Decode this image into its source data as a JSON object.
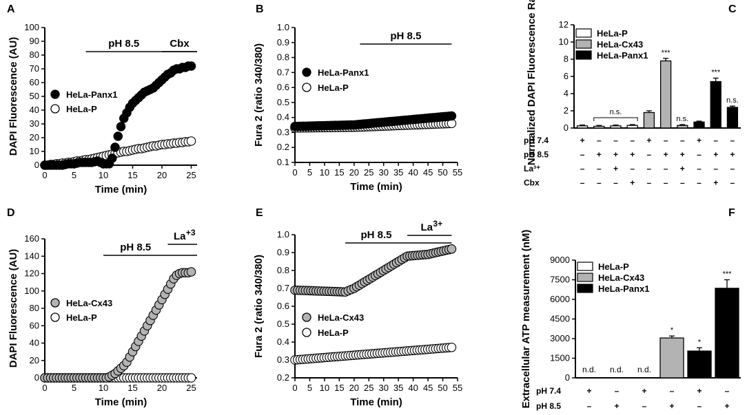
{
  "chart_data": [
    {
      "panel": "A",
      "type": "scatter",
      "ylabel": "DAPI Fluorescence (AU)",
      "xlabel": "Time (min)",
      "xlim": [
        0,
        26
      ],
      "ylim": [
        0,
        100
      ],
      "xticks": [
        0,
        5,
        10,
        15,
        20,
        25
      ],
      "yticks": [
        0,
        10,
        20,
        30,
        40,
        50,
        60,
        70,
        80,
        90,
        100
      ],
      "annotations": [
        {
          "text": "pH 8.5",
          "x_start": 7,
          "x_end": 26
        },
        {
          "text": "Cbx",
          "x_start": 20,
          "x_end": 26
        }
      ],
      "series": [
        {
          "name": "HeLa-Panx1",
          "fill": "#000000",
          "x": [
            0,
            0.5,
            1,
            1.5,
            2,
            2.5,
            3,
            3.5,
            4,
            4.5,
            5,
            5.5,
            6,
            6.5,
            7,
            7.5,
            8,
            8.5,
            9,
            9.5,
            10,
            10.5,
            11,
            11.5,
            12,
            12.5,
            13,
            13.5,
            14,
            14.5,
            15,
            15.5,
            16,
            16.5,
            17,
            17.5,
            18,
            18.5,
            19,
            19.5,
            20,
            20.5,
            21,
            21.5,
            22,
            22.5,
            23,
            23.5,
            24,
            24.5,
            25
          ],
          "y": [
            0,
            0,
            0,
            0,
            0,
            0,
            0,
            0.5,
            1,
            1,
            1,
            1.5,
            2,
            2,
            2,
            2,
            2,
            2.5,
            3,
            2,
            1,
            1,
            1,
            5,
            13,
            21,
            28,
            34,
            38,
            42,
            45,
            47,
            49,
            51,
            53,
            54,
            55,
            56,
            58,
            60,
            62,
            64,
            66,
            67,
            69,
            70,
            70,
            71,
            71,
            72,
            72
          ]
        },
        {
          "name": "HeLa-P",
          "fill": "#ffffff",
          "x": [
            0,
            0.5,
            1,
            1.5,
            2,
            2.5,
            3,
            3.5,
            4,
            4.5,
            5,
            5.5,
            6,
            6.5,
            7,
            7.5,
            8,
            8.5,
            9,
            9.5,
            10,
            10.5,
            11,
            11.5,
            12,
            12.5,
            13,
            13.5,
            14,
            14.5,
            15,
            15.5,
            16,
            16.5,
            17,
            17.5,
            18,
            18.5,
            19,
            19.5,
            20,
            20.5,
            21,
            21.5,
            22,
            22.5,
            23,
            23.5,
            24,
            24.5,
            25
          ],
          "y": [
            0,
            0,
            0.5,
            0.5,
            1,
            1,
            1.5,
            1.5,
            2,
            2,
            2.5,
            3,
            3,
            3.5,
            4,
            4,
            4.5,
            5,
            5.5,
            6,
            6.5,
            7,
            7.5,
            8,
            8.5,
            9,
            9.5,
            10,
            10,
            10.5,
            11,
            11.5,
            12,
            12,
            12.5,
            13,
            13.5,
            14,
            14,
            14.5,
            15,
            15,
            15.5,
            15.5,
            16,
            16,
            16.5,
            16.5,
            17,
            17,
            17.5
          ]
        }
      ]
    },
    {
      "panel": "B",
      "type": "scatter",
      "ylabel": "Fura 2 (ratio 340/380)",
      "xlabel": "Time (min)",
      "xlim": [
        0,
        55
      ],
      "ylim": [
        0.1,
        1.0
      ],
      "xticks": [
        0,
        5,
        10,
        15,
        20,
        25,
        30,
        35,
        40,
        45,
        50,
        55
      ],
      "yticks": [
        0.1,
        0.2,
        0.3,
        0.4,
        0.5,
        0.6,
        0.7,
        0.8,
        0.9,
        1.0
      ],
      "annotations": [
        {
          "text": "pH 8.5",
          "x_start": 22,
          "x_end": 53
        }
      ],
      "series": [
        {
          "name": "HeLa-Panx1",
          "fill": "#000000",
          "x_start": 0,
          "x_end": 53,
          "y_start": 0.34,
          "y_end": 0.41,
          "change_x": 20
        },
        {
          "name": "HeLa-P",
          "fill": "#ffffff",
          "x_start": 0,
          "x_end": 53,
          "y_start": 0.33,
          "y_end": 0.36,
          "change_x": 20
        }
      ]
    },
    {
      "panel": "C",
      "type": "bar",
      "ylabel": "Normalized DAPI Fluorescence Rate",
      "ylim": [
        0,
        12
      ],
      "yticks": [
        0,
        2,
        4,
        6,
        8,
        10,
        12
      ],
      "legend": [
        {
          "name": "HeLa-P",
          "fill": "#ffffff"
        },
        {
          "name": "HeLa-Cx43",
          "fill": "#b3b3b3"
        },
        {
          "name": "HeLa-Panx1",
          "fill": "#000000"
        }
      ],
      "values": [
        0.25,
        0.2,
        0.25,
        0.3,
        1.8,
        7.8,
        0.3,
        0.7,
        5.4,
        2.4
      ],
      "errors": [
        0.1,
        0.1,
        0.1,
        0.1,
        0.2,
        0.3,
        0.1,
        0.1,
        0.4,
        0.15
      ],
      "groups": [
        "HeLa-P",
        "HeLa-P",
        "HeLa-P",
        "HeLa-P",
        "HeLa-Cx43",
        "HeLa-Cx43",
        "HeLa-Cx43",
        "HeLa-Panx1",
        "HeLa-Panx1",
        "HeLa-Panx1"
      ],
      "significance": [
        "",
        "",
        "",
        "",
        "",
        "***",
        "n.s.",
        "",
        "***",
        "n.s."
      ],
      "bracket": {
        "from": 1,
        "to": 3,
        "label": "n.s."
      },
      "conditions": [
        {
          "label": "pH 7.4",
          "signs": [
            "+",
            "-",
            "-",
            "-",
            "+",
            "-",
            "-",
            "+",
            "-",
            "-"
          ]
        },
        {
          "label": "pH 8.5",
          "signs": [
            "-",
            "+",
            "+",
            "+",
            "-",
            "+",
            "+",
            "-",
            "+",
            "+"
          ]
        },
        {
          "label": "La³⁺",
          "signs": [
            "-",
            "-",
            "+",
            "-",
            "-",
            "-",
            "+",
            "-",
            "-",
            "-"
          ]
        },
        {
          "label": "Cbx",
          "signs": [
            "-",
            "-",
            "-",
            "+",
            "-",
            "-",
            "-",
            "-",
            "+",
            "-"
          ]
        }
      ]
    },
    {
      "panel": "D",
      "type": "scatter",
      "ylabel": "DAPI Fluorescence (AU)",
      "xlabel": "Time (min)",
      "xlim": [
        0,
        26
      ],
      "ylim": [
        0,
        160
      ],
      "xticks": [
        0,
        5,
        10,
        15,
        20,
        25
      ],
      "yticks": [
        0,
        20,
        40,
        60,
        80,
        100,
        120,
        140,
        160
      ],
      "annotations": [
        {
          "text": "pH 8.5",
          "x_start": 10,
          "x_end": 26
        },
        {
          "text": "La+3",
          "x_start": 21,
          "x_end": 26
        }
      ],
      "series": [
        {
          "name": "HeLa-Cx43",
          "fill": "#b3b3b3",
          "x": [
            0,
            0.5,
            1,
            1.5,
            2,
            2.5,
            3,
            3.5,
            4,
            4.5,
            5,
            5.5,
            6,
            6.5,
            7,
            7.5,
            8,
            8.5,
            9,
            9.5,
            10,
            10.5,
            11,
            11.5,
            12,
            12.5,
            13,
            13.5,
            14,
            14.5,
            15,
            15.5,
            16,
            16.5,
            17,
            17.5,
            18,
            18.5,
            19,
            19.5,
            20,
            20.5,
            21,
            21.5,
            22,
            22.5,
            23,
            23.5,
            24,
            24.5,
            25
          ],
          "y": [
            0,
            0,
            0,
            0,
            0,
            0,
            0,
            0,
            0,
            0,
            0,
            0,
            0,
            0,
            0,
            0,
            0,
            0,
            0,
            0,
            0,
            0,
            1,
            3,
            5,
            8,
            11,
            14,
            18,
            24,
            30,
            36,
            42,
            48,
            54,
            60,
            66,
            72,
            78,
            84,
            90,
            96,
            102,
            108,
            114,
            118,
            120,
            121,
            121,
            121,
            122
          ]
        },
        {
          "name": "HeLa-P",
          "fill": "#ffffff",
          "x": [
            0,
            0.5,
            1,
            1.5,
            2,
            2.5,
            3,
            3.5,
            4,
            4.5,
            5,
            5.5,
            6,
            6.5,
            7,
            7.5,
            8,
            8.5,
            9,
            9.5,
            10,
            10.5,
            11,
            11.5,
            12,
            12.5,
            13,
            13.5,
            14,
            14.5,
            15,
            15.5,
            16,
            16.5,
            17,
            17.5,
            18,
            18.5,
            19,
            19.5,
            20,
            20.5,
            21,
            21.5,
            22,
            22.5,
            23,
            23.5,
            24,
            24.5,
            25
          ],
          "y": [
            0,
            0,
            0,
            0,
            0,
            0,
            0,
            0,
            0,
            0,
            0,
            0,
            0,
            0,
            0,
            0,
            0,
            0,
            0,
            0,
            0,
            0,
            0,
            0,
            0,
            0,
            0,
            0,
            0,
            0,
            0,
            0,
            0,
            0,
            0,
            0,
            0,
            0,
            0,
            0,
            0,
            0,
            0,
            0,
            0,
            0,
            0,
            0,
            0,
            0,
            0
          ]
        }
      ]
    },
    {
      "panel": "E",
      "type": "scatter",
      "ylabel": "Fura 2 (ratio 340/380)",
      "xlabel": "Time (min)",
      "xlim": [
        0,
        55
      ],
      "ylim": [
        0.2,
        1.0
      ],
      "xticks": [
        0,
        5,
        10,
        15,
        20,
        25,
        30,
        35,
        40,
        45,
        50,
        55
      ],
      "yticks": [
        0.2,
        0.3,
        0.4,
        0.5,
        0.6,
        0.7,
        0.8,
        0.9,
        1.0
      ],
      "annotations": [
        {
          "text": "pH 8.5",
          "x_start": 17,
          "x_end": 53
        },
        {
          "text": "La3+",
          "x_start": 38,
          "x_end": 53
        }
      ],
      "series": [
        {
          "name": "HeLa-Cx43",
          "fill": "#b3b3b3",
          "x": [
            0,
            17,
            20,
            38,
            45,
            53
          ],
          "y": [
            0.69,
            0.68,
            0.7,
            0.88,
            0.89,
            0.92
          ]
        },
        {
          "name": "HeLa-P",
          "fill": "#ffffff",
          "x": [
            0,
            53
          ],
          "y": [
            0.3,
            0.37
          ]
        }
      ]
    },
    {
      "panel": "F",
      "type": "bar",
      "ylabel": "Extracellular ATP measurement (nM)",
      "ylim": [
        0,
        9000
      ],
      "yticks": [
        0,
        1500,
        3000,
        4500,
        6000,
        7500,
        9000
      ],
      "legend": [
        {
          "name": "HeLa-P",
          "fill": "#ffffff"
        },
        {
          "name": "HeLa-Cx43",
          "fill": "#b3b3b3"
        },
        {
          "name": "HeLa-Panx1",
          "fill": "#000000"
        }
      ],
      "values": [
        0,
        0,
        0,
        3050,
        2050,
        6850
      ],
      "errors": [
        0,
        0,
        0,
        150,
        250,
        650
      ],
      "groups": [
        "HeLa-P",
        "HeLa-P",
        "HeLa-P",
        "HeLa-Cx43",
        "HeLa-Panx1",
        "HeLa-Panx1"
      ],
      "labels": [
        "n.d.",
        "n.d.",
        "n.d.",
        "*",
        "*",
        "***"
      ],
      "conditions": [
        {
          "label": "pH 7.4",
          "signs": [
            "+",
            "-",
            "+",
            "-",
            "+",
            "-"
          ]
        },
        {
          "label": "pH 8.5",
          "signs": [
            "-",
            "+",
            "-",
            "+",
            "-",
            "+"
          ]
        }
      ]
    }
  ]
}
